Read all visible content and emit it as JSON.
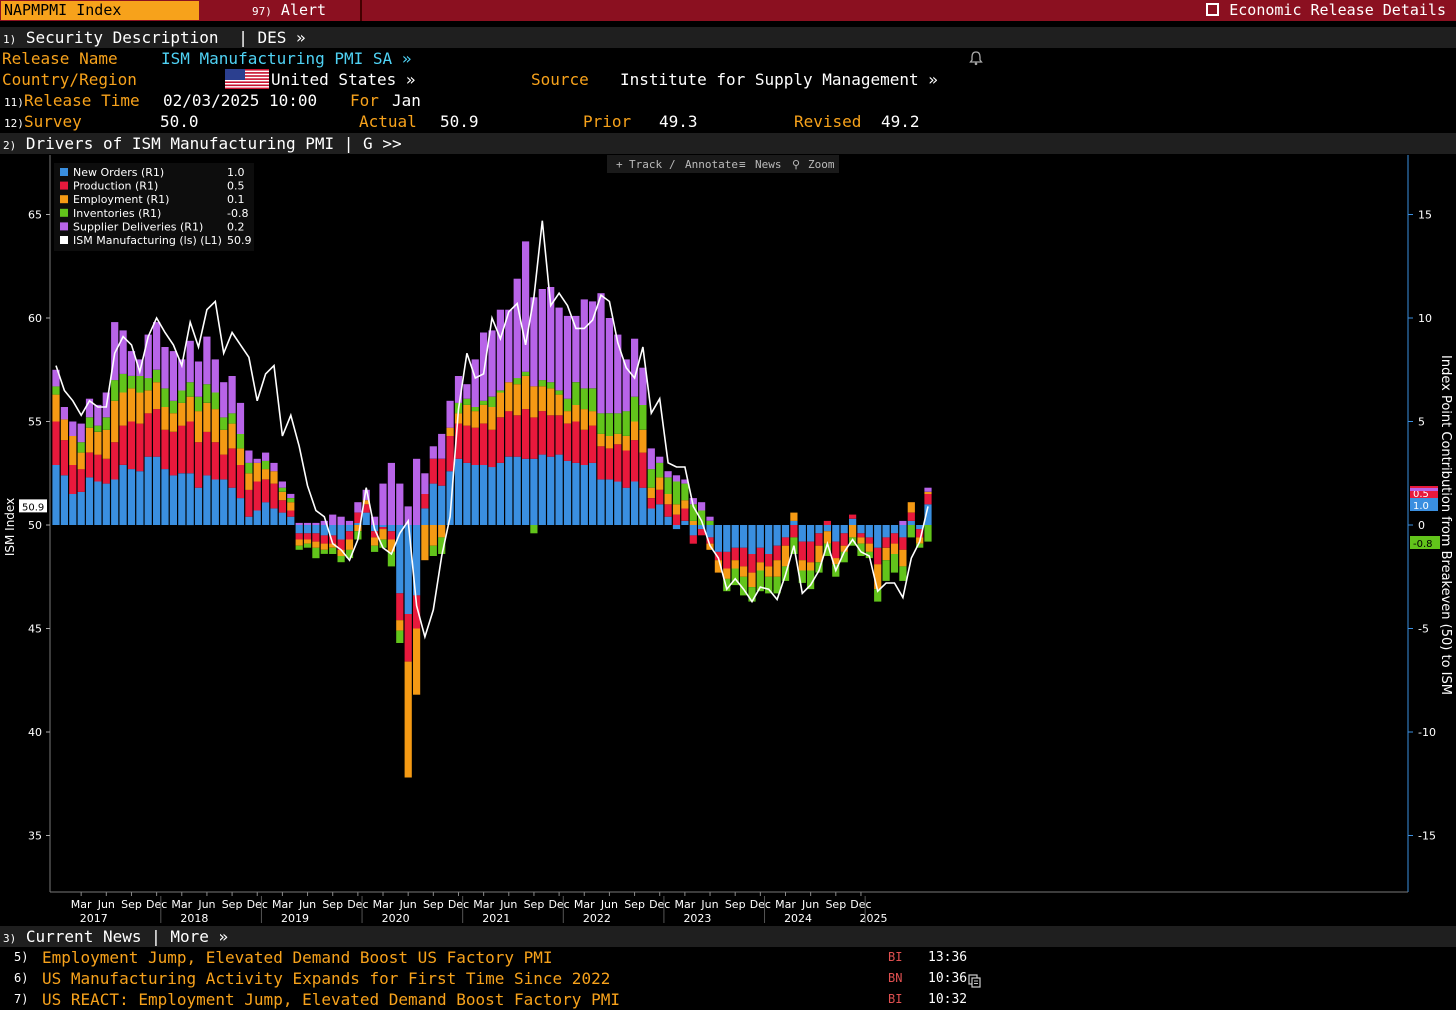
{
  "topbar": {
    "ticker": "NAPMPMI Index",
    "alert_num": "97)",
    "alert": "Alert",
    "erd": "Economic Release Details"
  },
  "desc": {
    "num": "1)",
    "title": "Security Description",
    "sep": "| DES »"
  },
  "release": {
    "name_label": "Release Name",
    "name_value": "ISM Manufacturing PMI SA »",
    "country_label": "Country/Region",
    "country_value": "United States »",
    "source_label": "Source",
    "source_value": "Institute for Supply Management »",
    "time_num": "11)",
    "time_label": "Release Time",
    "time_value": "02/03/2025 10:00",
    "for_label": "For",
    "for_value": "Jan",
    "survey_num": "12)",
    "survey_label": "Survey",
    "survey_value": "50.0",
    "actual_label": "Actual",
    "actual_value": "50.9",
    "prior_label": "Prior",
    "prior_value": "49.3",
    "revised_label": "Revised",
    "revised_value": "49.2"
  },
  "drivers": {
    "num": "2)",
    "title": "Drivers of ISM Manufacturing PMI",
    "sep": "| G >>"
  },
  "toolbar": {
    "track": "Track",
    "annotate": "Annotate",
    "news": "News",
    "zoom": "Zoom"
  },
  "colors": {
    "new_orders": "#3a8fe0",
    "production": "#e8193c",
    "employment": "#f59a14",
    "inventories": "#62c41b",
    "supplier": "#b864e8",
    "ism": "#ffffff"
  },
  "chart_data": {
    "type": "bar",
    "x_start": "2016-12",
    "left_axis": {
      "label": "ISM Index",
      "ticks": [
        35,
        40,
        45,
        50,
        55,
        60,
        65
      ],
      "range": [
        32.5,
        66.5
      ]
    },
    "right_axis": {
      "label": "Index Point Contribution from Breakeven (50) to ISM",
      "ticks": [
        -15,
        -10,
        -5,
        0,
        5,
        10,
        15
      ]
    },
    "legend": [
      {
        "name": "New Orders (R1)",
        "value": "1.0",
        "key": "new_orders"
      },
      {
        "name": "Production (R1)",
        "value": "0.5",
        "key": "production"
      },
      {
        "name": "Employment (R1)",
        "value": "0.1",
        "key": "employment"
      },
      {
        "name": "Inventories (R1)",
        "value": "-0.8",
        "key": "inventories"
      },
      {
        "name": "Supplier Deliveries (R1)",
        "value": "0.2",
        "key": "supplier"
      },
      {
        "name": "ISM Manufacturing (ls) (L1)",
        "value": "50.9",
        "key": "ism"
      }
    ],
    "last_labels": {
      "ism": "50.9",
      "production": "0.5",
      "new_orders": "1.0",
      "inventories": "-0.8",
      "zero": "0"
    },
    "ism": [
      57.7,
      56.5,
      56.0,
      55.3,
      56.0,
      55.7,
      55.7,
      58.3,
      59.1,
      58.7,
      57.4,
      59.1,
      60.0,
      59.3,
      58.7,
      57.7,
      59.8,
      58.6,
      60.4,
      60.8,
      58.3,
      59.3,
      58.7,
      58.1,
      56.0,
      57.3,
      57.7,
      54.3,
      55.3,
      53.8,
      51.9,
      50.7,
      50.4,
      49.1,
      48.8,
      48.3,
      49.3,
      51.8,
      49.8,
      48.9,
      48.6,
      49.6,
      50.2,
      46.1,
      44.6,
      45.9,
      48.5,
      50.4,
      55.6,
      58.3,
      57.1,
      57.3,
      60.0,
      59.0,
      60.3,
      60.7,
      58.7,
      61.0,
      64.7,
      60.6,
      61.2,
      60.6,
      59.5,
      59.5,
      59.9,
      61.1,
      60.8,
      58.8,
      57.6,
      57.1,
      58.6,
      55.4,
      56.1,
      53.0,
      52.8,
      52.8,
      50.9,
      50.2,
      49.0,
      48.4,
      46.9,
      47.4,
      46.9,
      46.3,
      47.0,
      46.9,
      46.4,
      47.6,
      49.0,
      46.7,
      47.1,
      47.8,
      49.1,
      47.8,
      48.7,
      49.3,
      48.7,
      48.5,
      46.8,
      47.2,
      47.2,
      46.5,
      48.4,
      49.2,
      50.9
    ],
    "stacks": [
      [
        2.9,
        2.1,
        1.3,
        0.4,
        0.8
      ],
      [
        2.4,
        1.7,
        1.0,
        0.0,
        0.6
      ],
      [
        1.5,
        1.4,
        1.4,
        0.0,
        0.7
      ],
      [
        1.6,
        1.1,
        0.8,
        0.5,
        0.9
      ],
      [
        2.3,
        1.2,
        1.2,
        0.5,
        0.9
      ],
      [
        2.1,
        1.3,
        1.1,
        0.3,
        1.0
      ],
      [
        2.0,
        1.2,
        1.4,
        0.6,
        1.2
      ],
      [
        2.2,
        1.8,
        2.0,
        1.0,
        2.8
      ],
      [
        2.9,
        1.9,
        1.6,
        0.9,
        2.1
      ],
      [
        2.7,
        2.3,
        1.6,
        0.6,
        1.2
      ],
      [
        2.6,
        2.3,
        1.5,
        0.8,
        0.8
      ],
      [
        3.3,
        2.1,
        1.1,
        0.6,
        2.1
      ],
      [
        3.3,
        2.3,
        1.3,
        0.6,
        2.3
      ],
      [
        2.7,
        1.9,
        1.1,
        0.9,
        2.0
      ],
      [
        2.4,
        2.1,
        0.9,
        0.6,
        2.4
      ],
      [
        2.5,
        2.3,
        1.1,
        0.6,
        1.5
      ],
      [
        2.5,
        2.5,
        1.2,
        0.7,
        2.0
      ],
      [
        1.8,
        2.2,
        1.5,
        0.7,
        1.7
      ],
      [
        2.4,
        2.1,
        1.4,
        0.9,
        2.3
      ],
      [
        2.2,
        1.8,
        1.6,
        0.8,
        1.6
      ],
      [
        2.2,
        1.2,
        1.2,
        0.6,
        1.7
      ],
      [
        1.8,
        1.9,
        1.2,
        0.5,
        1.8
      ],
      [
        1.3,
        1.6,
        0.8,
        0.7,
        1.5
      ],
      [
        0.4,
        1.3,
        0.8,
        0.5,
        0.6
      ],
      [
        0.7,
        1.4,
        0.9,
        0.0,
        0.2
      ],
      [
        1.1,
        1.1,
        0.5,
        0.4,
        0.4
      ],
      [
        0.8,
        1.2,
        0.6,
        0.0,
        0.4
      ],
      [
        0.6,
        0.6,
        0.4,
        0.2,
        0.3
      ],
      [
        0.4,
        0.3,
        0.4,
        0.2,
        0.2
      ],
      [
        -0.4,
        -0.3,
        -0.3,
        -0.2,
        0.1
      ],
      [
        -0.4,
        -0.3,
        -0.2,
        -0.2,
        0.1
      ],
      [
        -0.4,
        -0.4,
        -0.3,
        -0.5,
        0.1
      ],
      [
        -0.5,
        -0.4,
        -0.3,
        -0.2,
        0.2
      ],
      [
        -0.5,
        -0.4,
        -0.2,
        -0.3,
        0.5
      ],
      [
        -0.7,
        -0.5,
        -0.3,
        -0.3,
        0.4
      ],
      [
        -0.3,
        -0.4,
        -0.5,
        -0.4,
        0.2
      ],
      [
        0.1,
        0.5,
        -0.3,
        -0.4,
        0.5
      ],
      [
        0.6,
        0.4,
        0.2,
        0.0,
        0.5
      ],
      [
        -0.3,
        -0.3,
        -0.4,
        -0.3,
        0.4
      ],
      [
        -0.1,
        -0.1,
        -0.5,
        -0.4,
        2.0
      ],
      [
        -0.3,
        -0.4,
        -0.6,
        -0.7,
        3.0
      ],
      [
        -3.3,
        -1.3,
        -0.5,
        -0.6,
        2.0
      ],
      [
        -4.3,
        -2.3,
        -5.6,
        0.0,
        0.9
      ],
      [
        -3.4,
        -1.6,
        -3.2,
        0.0,
        3.2
      ],
      [
        0.8,
        0.7,
        -1.7,
        0.0,
        1.0
      ],
      [
        2.0,
        1.2,
        -1.0,
        -0.5,
        0.6
      ],
      [
        1.9,
        1.3,
        -0.6,
        -0.8,
        1.2
      ],
      [
        2.6,
        1.7,
        0.4,
        0.0,
        1.3
      ],
      [
        3.2,
        1.7,
        0.5,
        0.5,
        1.3
      ],
      [
        3.0,
        1.8,
        1.0,
        0.3,
        0.7
      ],
      [
        2.9,
        1.8,
        0.8,
        0.2,
        2.3
      ],
      [
        2.9,
        2.0,
        0.9,
        0.2,
        3.3
      ],
      [
        2.8,
        1.8,
        1.1,
        0.5,
        3.2
      ],
      [
        3.0,
        2.2,
        1.2,
        0.1,
        3.9
      ],
      [
        3.3,
        2.2,
        1.4,
        0.0,
        3.5
      ],
      [
        3.3,
        2.0,
        1.5,
        0.3,
        4.8
      ],
      [
        3.2,
        2.4,
        1.6,
        0.2,
        6.3
      ],
      [
        3.2,
        2.0,
        1.5,
        -0.4,
        4.3
      ],
      [
        3.4,
        2.1,
        1.2,
        0.3,
        4.4
      ],
      [
        3.3,
        2.0,
        1.3,
        0.3,
        4.6
      ],
      [
        3.4,
        1.9,
        1.0,
        0.2,
        4.0
      ],
      [
        3.1,
        1.8,
        0.6,
        0.6,
        4.0
      ],
      [
        3.0,
        2.0,
        0.8,
        1.1,
        3.2
      ],
      [
        2.9,
        1.7,
        1.0,
        1.0,
        4.3
      ],
      [
        3.0,
        1.8,
        0.7,
        1.1,
        4.2
      ],
      [
        2.2,
        1.6,
        0.6,
        1.0,
        5.8
      ],
      [
        2.2,
        1.5,
        0.6,
        1.1,
        4.6
      ],
      [
        2.1,
        1.8,
        0.5,
        1.0,
        3.8
      ],
      [
        1.8,
        1.8,
        0.7,
        1.2,
        2.5
      ],
      [
        2.1,
        2.0,
        0.9,
        1.2,
        2.8
      ],
      [
        1.8,
        1.7,
        1.1,
        1.2,
        1.8
      ],
      [
        0.8,
        0.5,
        0.5,
        0.9,
        1.0
      ],
      [
        1.0,
        0.7,
        0.6,
        0.7,
        0.3
      ],
      [
        0.4,
        0.6,
        0.5,
        0.8,
        0.3
      ],
      [
        -0.2,
        0.5,
        0.5,
        1.1,
        0.3
      ],
      [
        0.2,
        0.6,
        0.4,
        0.8,
        0.2
      ],
      [
        -0.5,
        -0.4,
        0.2,
        0.8,
        0.3
      ],
      [
        -0.2,
        -0.3,
        0.0,
        0.7,
        0.4
      ],
      [
        -0.6,
        -0.3,
        -0.3,
        0.2,
        0.2
      ],
      [
        -1.3,
        -0.4,
        -0.6,
        0.0,
        0.0
      ],
      [
        -1.3,
        -0.8,
        -0.5,
        -0.6,
        0.0
      ],
      [
        -1.1,
        -0.6,
        -0.4,
        -0.8,
        0.0
      ],
      [
        -1.1,
        -0.9,
        -0.5,
        -0.9,
        0.0
      ],
      [
        -1.4,
        -0.9,
        -0.7,
        -0.7,
        0.0
      ],
      [
        -1.1,
        -0.7,
        -0.4,
        -1.0,
        0.0
      ],
      [
        -1.4,
        -0.6,
        -0.5,
        -0.8,
        0.0
      ],
      [
        -1.0,
        -0.7,
        -0.8,
        -0.8,
        0.0
      ],
      [
        -0.6,
        -0.4,
        -1.0,
        -0.7,
        0.0
      ],
      [
        0.2,
        -0.6,
        0.4,
        -0.8,
        0.0
      ],
      [
        -0.8,
        -0.9,
        -0.5,
        -0.6,
        0.0
      ],
      [
        -0.8,
        -1.0,
        -0.4,
        -0.9,
        0.0
      ],
      [
        -0.4,
        -0.6,
        -0.8,
        -0.5,
        0.0
      ],
      [
        -0.3,
        0.2,
        -0.6,
        -0.6,
        0.0
      ],
      [
        -0.8,
        -0.8,
        -0.3,
        -0.6,
        0.0
      ],
      [
        -0.4,
        -0.6,
        -0.3,
        -0.5,
        0.0
      ],
      [
        0.3,
        0.2,
        -0.6,
        -0.4,
        0.0
      ],
      [
        -0.4,
        -0.2,
        -0.3,
        -0.6,
        0.0
      ],
      [
        -0.6,
        -0.3,
        -0.4,
        -0.3,
        0.0
      ],
      [
        -1.1,
        -0.8,
        -1.2,
        -0.6,
        0.0
      ],
      [
        -0.6,
        -0.5,
        -0.6,
        -1.0,
        0.0
      ],
      [
        -0.4,
        -0.5,
        -0.5,
        -0.9,
        0.0
      ],
      [
        -0.6,
        -0.6,
        -0.8,
        -0.7,
        0.2
      ],
      [
        0.2,
        0.4,
        0.5,
        -0.6,
        0.0
      ],
      [
        -0.2,
        -0.4,
        -0.3,
        -0.2,
        0.0
      ],
      [
        1.0,
        0.5,
        0.1,
        -0.8,
        0.2
      ]
    ],
    "x_labels": [
      "Mar",
      "Jun",
      "Sep",
      "Dec",
      "Mar",
      "Jun",
      "Sep",
      "Dec",
      "Mar",
      "Jun",
      "Sep",
      "Dec",
      "Mar",
      "Jun",
      "Sep",
      "Dec",
      "Mar",
      "Jun",
      "Sep",
      "Dec",
      "Mar",
      "Jun",
      "Sep",
      "Dec",
      "Mar",
      "Jun",
      "Sep",
      "Dec",
      "Mar",
      "Jun",
      "Sep",
      "Dec"
    ],
    "x_label_months": [
      3,
      6,
      9,
      12,
      15,
      18,
      21,
      24,
      27,
      30,
      33,
      36,
      39,
      42,
      45,
      48,
      51,
      54,
      57,
      60,
      63,
      66,
      69,
      72,
      75,
      78,
      81,
      84,
      87,
      90,
      93,
      96
    ],
    "year_labels": [
      "2017",
      "2018",
      "2019",
      "2020",
      "2021",
      "2022",
      "2023",
      "2024",
      "2025"
    ],
    "year_label_months": [
      4.5,
      16.5,
      28.5,
      40.5,
      52.5,
      64.5,
      76.5,
      88.5,
      97.5
    ]
  },
  "news": {
    "num": "3)",
    "title": "Current News",
    "more": "| More »",
    "items": [
      {
        "n": "5)",
        "title": "Employment Jump, Elevated Demand Boost US Factory PMI",
        "src": "BI",
        "time": "13:36"
      },
      {
        "n": "6)",
        "title": "US Manufacturing Activity Expands for First Time Since 2022",
        "src": "BN",
        "time": "10:36"
      },
      {
        "n": "7)",
        "title": "US REACT: Employment Jump, Elevated Demand Boost Factory PMI",
        "src": "BI",
        "time": "10:32"
      }
    ]
  }
}
